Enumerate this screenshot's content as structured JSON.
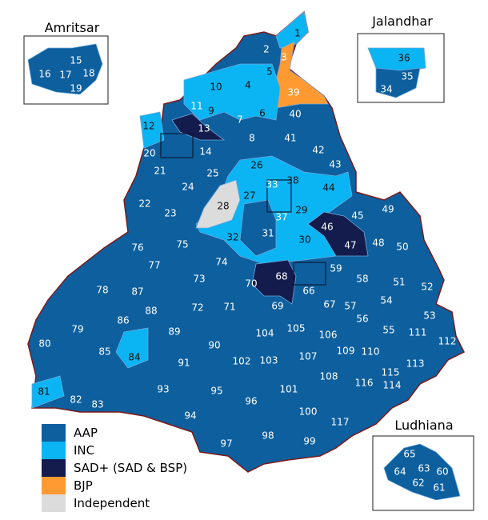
{
  "colors": {
    "AAP": "#0d5f9e",
    "INC": "#0bb4f2",
    "SAD": "#141c4e",
    "BJP": "#ff9a33",
    "IND": "#dcdcdc",
    "border": "#7a1a1a",
    "inner": "#6fa8dc"
  },
  "legend": [
    {
      "party": "AAP",
      "label": "AAP"
    },
    {
      "party": "INC",
      "label": "INC"
    },
    {
      "party": "SAD",
      "label": "SAD+ (SAD & BSP)"
    },
    {
      "party": "BJP",
      "label": "BJP"
    },
    {
      "party": "IND",
      "label": "Independent"
    }
  ],
  "insets": {
    "amritsar": "Amritsar",
    "jalandhar": "Jalandhar",
    "ludhiana": "Ludhiana"
  },
  "seats": [
    {
      "n": "1",
      "p": "INC"
    },
    {
      "n": "2",
      "p": "AAP"
    },
    {
      "n": "3",
      "p": "BJP"
    },
    {
      "n": "4",
      "p": "INC"
    },
    {
      "n": "5",
      "p": "INC"
    },
    {
      "n": "6",
      "p": "INC"
    },
    {
      "n": "7",
      "p": "AAP"
    },
    {
      "n": "8",
      "p": "AAP"
    },
    {
      "n": "9",
      "p": "INC"
    },
    {
      "n": "10",
      "p": "INC"
    },
    {
      "n": "11",
      "p": "AAP"
    },
    {
      "n": "12",
      "p": "INC"
    },
    {
      "n": "13",
      "p": "SAD"
    },
    {
      "n": "14",
      "p": "AAP"
    },
    {
      "n": "15",
      "p": "AAP"
    },
    {
      "n": "16",
      "p": "AAP"
    },
    {
      "n": "17",
      "p": "AAP"
    },
    {
      "n": "18",
      "p": "AAP"
    },
    {
      "n": "19",
      "p": "AAP"
    },
    {
      "n": "20",
      "p": "AAP"
    },
    {
      "n": "21",
      "p": "AAP"
    },
    {
      "n": "22",
      "p": "AAP"
    },
    {
      "n": "23",
      "p": "AAP"
    },
    {
      "n": "24",
      "p": "AAP"
    },
    {
      "n": "25",
      "p": "AAP"
    },
    {
      "n": "26",
      "p": "INC"
    },
    {
      "n": "27",
      "p": "INC"
    },
    {
      "n": "28",
      "p": "IND"
    },
    {
      "n": "29",
      "p": "INC"
    },
    {
      "n": "30",
      "p": "INC"
    },
    {
      "n": "31",
      "p": "AAP"
    },
    {
      "n": "32",
      "p": "INC"
    },
    {
      "n": "33",
      "p": "AAP"
    },
    {
      "n": "34",
      "p": "AAP"
    },
    {
      "n": "35",
      "p": "AAP"
    },
    {
      "n": "36",
      "p": "INC"
    },
    {
      "n": "37",
      "p": "AAP"
    },
    {
      "n": "38",
      "p": "INC"
    },
    {
      "n": "39",
      "p": "BJP"
    },
    {
      "n": "40",
      "p": "AAP"
    },
    {
      "n": "41",
      "p": "AAP"
    },
    {
      "n": "42",
      "p": "AAP"
    },
    {
      "n": "43",
      "p": "AAP"
    },
    {
      "n": "44",
      "p": "INC"
    },
    {
      "n": "45",
      "p": "AAP"
    },
    {
      "n": "46",
      "p": "SAD"
    },
    {
      "n": "47",
      "p": "SAD"
    },
    {
      "n": "48",
      "p": "AAP"
    },
    {
      "n": "49",
      "p": "AAP"
    },
    {
      "n": "50",
      "p": "AAP"
    },
    {
      "n": "51",
      "p": "AAP"
    },
    {
      "n": "52",
      "p": "AAP"
    },
    {
      "n": "53",
      "p": "AAP"
    },
    {
      "n": "54",
      "p": "AAP"
    },
    {
      "n": "55",
      "p": "AAP"
    },
    {
      "n": "56",
      "p": "AAP"
    },
    {
      "n": "57",
      "p": "AAP"
    },
    {
      "n": "58",
      "p": "AAP"
    },
    {
      "n": "59",
      "p": "AAP"
    },
    {
      "n": "60",
      "p": "AAP"
    },
    {
      "n": "61",
      "p": "AAP"
    },
    {
      "n": "62",
      "p": "AAP"
    },
    {
      "n": "63",
      "p": "AAP"
    },
    {
      "n": "64",
      "p": "AAP"
    },
    {
      "n": "65",
      "p": "AAP"
    },
    {
      "n": "66",
      "p": "AAP"
    },
    {
      "n": "67",
      "p": "AAP"
    },
    {
      "n": "68",
      "p": "SAD"
    },
    {
      "n": "69",
      "p": "AAP"
    },
    {
      "n": "70",
      "p": "AAP"
    },
    {
      "n": "71",
      "p": "AAP"
    },
    {
      "n": "72",
      "p": "AAP"
    },
    {
      "n": "73",
      "p": "AAP"
    },
    {
      "n": "74",
      "p": "AAP"
    },
    {
      "n": "75",
      "p": "AAP"
    },
    {
      "n": "76",
      "p": "AAP"
    },
    {
      "n": "77",
      "p": "AAP"
    },
    {
      "n": "78",
      "p": "AAP"
    },
    {
      "n": "79",
      "p": "AAP"
    },
    {
      "n": "80",
      "p": "AAP"
    },
    {
      "n": "81",
      "p": "INC"
    },
    {
      "n": "82",
      "p": "AAP"
    },
    {
      "n": "83",
      "p": "AAP"
    },
    {
      "n": "84",
      "p": "INC"
    },
    {
      "n": "85",
      "p": "AAP"
    },
    {
      "n": "86",
      "p": "AAP"
    },
    {
      "n": "87",
      "p": "AAP"
    },
    {
      "n": "88",
      "p": "AAP"
    },
    {
      "n": "89",
      "p": "AAP"
    },
    {
      "n": "90",
      "p": "AAP"
    },
    {
      "n": "91",
      "p": "AAP"
    },
    {
      "n": "93",
      "p": "AAP"
    },
    {
      "n": "94",
      "p": "AAP"
    },
    {
      "n": "95",
      "p": "AAP"
    },
    {
      "n": "96",
      "p": "AAP"
    },
    {
      "n": "97",
      "p": "AAP"
    },
    {
      "n": "98",
      "p": "AAP"
    },
    {
      "n": "99",
      "p": "AAP"
    },
    {
      "n": "100",
      "p": "AAP"
    },
    {
      "n": "101",
      "p": "AAP"
    },
    {
      "n": "102",
      "p": "AAP"
    },
    {
      "n": "103",
      "p": "AAP"
    },
    {
      "n": "104",
      "p": "AAP"
    },
    {
      "n": "105",
      "p": "AAP"
    },
    {
      "n": "106",
      "p": "AAP"
    },
    {
      "n": "107",
      "p": "AAP"
    },
    {
      "n": "108",
      "p": "AAP"
    },
    {
      "n": "109",
      "p": "AAP"
    },
    {
      "n": "110",
      "p": "AAP"
    },
    {
      "n": "111",
      "p": "AAP"
    },
    {
      "n": "112",
      "p": "AAP"
    },
    {
      "n": "113",
      "p": "AAP"
    },
    {
      "n": "114",
      "p": "AAP"
    },
    {
      "n": "115",
      "p": "AAP"
    },
    {
      "n": "116",
      "p": "AAP"
    },
    {
      "n": "117",
      "p": "AAP"
    }
  ]
}
